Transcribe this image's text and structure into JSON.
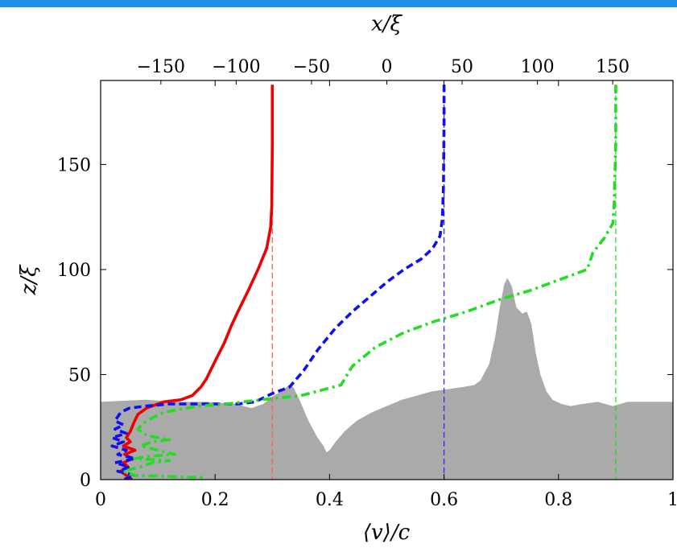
{
  "chart_data": {
    "type": "line",
    "title": "",
    "xlabel": "⟨v⟩/c",
    "ylabel": "z/ξ",
    "top_xlabel": "x/ξ",
    "xlim": [
      0,
      1
    ],
    "ylim": [
      0,
      190
    ],
    "top_xlim": [
      -190,
      190
    ],
    "x_ticks": [
      {
        "value": 0,
        "label": "0"
      },
      {
        "value": 0.2,
        "label": "0.2"
      },
      {
        "value": 0.4,
        "label": "0.4"
      },
      {
        "value": 0.6,
        "label": "0.6"
      },
      {
        "value": 0.8,
        "label": "0.8"
      },
      {
        "value": 1,
        "label": "1"
      }
    ],
    "y_ticks": [
      {
        "value": 0,
        "label": "0"
      },
      {
        "value": 50,
        "label": "50"
      },
      {
        "value": 100,
        "label": "100"
      },
      {
        "value": 150,
        "label": "150"
      }
    ],
    "top_x_ticks": [
      {
        "value": -150,
        "label": "−150"
      },
      {
        "value": -100,
        "label": "−100"
      },
      {
        "value": -50,
        "label": "−50"
      },
      {
        "value": 0,
        "label": "0"
      },
      {
        "value": 50,
        "label": "50"
      },
      {
        "value": 100,
        "label": "100"
      },
      {
        "value": 150,
        "label": "150"
      }
    ],
    "grid": false,
    "legend": "none",
    "reference_lines": [
      {
        "x": 0.3,
        "color": "#ff5a5a"
      },
      {
        "x": 0.6,
        "color": "#2a2aff"
      },
      {
        "x": 0.9,
        "color": "#22dd22"
      }
    ],
    "series": [
      {
        "color": "#ee0000",
        "style": "solid",
        "points": [
          [
            0.3,
            188
          ],
          [
            0.3,
            160
          ],
          [
            0.299,
            130
          ],
          [
            0.297,
            120
          ],
          [
            0.29,
            110
          ],
          [
            0.275,
            100
          ],
          [
            0.258,
            90
          ],
          [
            0.24,
            80
          ],
          [
            0.228,
            73
          ],
          [
            0.216,
            65
          ],
          [
            0.203,
            58
          ],
          [
            0.192,
            52
          ],
          [
            0.185,
            48
          ],
          [
            0.175,
            44
          ],
          [
            0.16,
            40
          ],
          [
            0.14,
            38
          ],
          [
            0.11,
            37
          ],
          [
            0.08,
            34
          ],
          [
            0.065,
            31
          ],
          [
            0.058,
            27
          ],
          [
            0.052,
            23
          ],
          [
            0.045,
            20
          ],
          [
            0.052,
            18
          ],
          [
            0.04,
            16
          ],
          [
            0.06,
            14
          ],
          [
            0.042,
            12
          ],
          [
            0.055,
            10
          ],
          [
            0.04,
            8
          ],
          [
            0.048,
            6
          ],
          [
            0.035,
            4
          ],
          [
            0.045,
            2
          ],
          [
            0.055,
            0
          ]
        ]
      },
      {
        "color": "#1010ee",
        "style": "dashed",
        "points": [
          [
            0.6,
            188
          ],
          [
            0.6,
            170
          ],
          [
            0.599,
            140
          ],
          [
            0.597,
            124
          ],
          [
            0.593,
            116
          ],
          [
            0.58,
            110
          ],
          [
            0.56,
            105
          ],
          [
            0.53,
            100
          ],
          [
            0.5,
            94
          ],
          [
            0.47,
            87
          ],
          [
            0.44,
            80
          ],
          [
            0.41,
            72
          ],
          [
            0.38,
            62
          ],
          [
            0.355,
            52
          ],
          [
            0.33,
            44
          ],
          [
            0.3,
            41
          ],
          [
            0.27,
            37
          ],
          [
            0.24,
            36
          ],
          [
            0.18,
            36
          ],
          [
            0.12,
            36
          ],
          [
            0.08,
            35
          ],
          [
            0.05,
            34
          ],
          [
            0.035,
            32
          ],
          [
            0.025,
            28
          ],
          [
            0.04,
            26
          ],
          [
            0.025,
            24
          ],
          [
            0.045,
            22
          ],
          [
            0.02,
            20
          ],
          [
            0.04,
            18
          ],
          [
            0.02,
            16
          ],
          [
            0.045,
            14
          ],
          [
            0.03,
            12
          ],
          [
            0.06,
            10
          ],
          [
            0.025,
            8
          ],
          [
            0.05,
            6
          ],
          [
            0.03,
            4
          ],
          [
            0.06,
            2
          ],
          [
            0.04,
            0
          ]
        ]
      },
      {
        "color": "#22dd22",
        "style": "dashdot",
        "points": [
          [
            0.9,
            188
          ],
          [
            0.9,
            160
          ],
          [
            0.897,
            130
          ],
          [
            0.895,
            122
          ],
          [
            0.88,
            115
          ],
          [
            0.86,
            108
          ],
          [
            0.85,
            100
          ],
          [
            0.8,
            95
          ],
          [
            0.75,
            90
          ],
          [
            0.7,
            86
          ],
          [
            0.64,
            80
          ],
          [
            0.58,
            75
          ],
          [
            0.53,
            70
          ],
          [
            0.48,
            63
          ],
          [
            0.44,
            54
          ],
          [
            0.42,
            45
          ],
          [
            0.35,
            40
          ],
          [
            0.28,
            38
          ],
          [
            0.22,
            36
          ],
          [
            0.17,
            35
          ],
          [
            0.11,
            32
          ],
          [
            0.08,
            28
          ],
          [
            0.065,
            24
          ],
          [
            0.08,
            21
          ],
          [
            0.12,
            19
          ],
          [
            0.09,
            18
          ],
          [
            0.07,
            16
          ],
          [
            0.1,
            14
          ],
          [
            0.13,
            12
          ],
          [
            0.08,
            11
          ],
          [
            0.06,
            10
          ],
          [
            0.12,
            9
          ],
          [
            0.09,
            8
          ],
          [
            0.07,
            6
          ],
          [
            0.04,
            4
          ],
          [
            0.06,
            2
          ],
          [
            0.18,
            1
          ],
          [
            0.18,
            0
          ]
        ]
      }
    ],
    "background_profile": {
      "color": "#aaaaaa",
      "description_axis": "top_x",
      "points": [
        [
          -190,
          37
        ],
        [
          -160,
          38
        ],
        [
          -140,
          37
        ],
        [
          -120,
          37
        ],
        [
          -100,
          36
        ],
        [
          -90,
          34
        ],
        [
          -82,
          36
        ],
        [
          -75,
          40
        ],
        [
          -70,
          42
        ],
        [
          -65,
          45
        ],
        [
          -62,
          44
        ],
        [
          -58,
          38
        ],
        [
          -52,
          28
        ],
        [
          -46,
          20
        ],
        [
          -42,
          16
        ],
        [
          -40,
          13
        ],
        [
          -38,
          14
        ],
        [
          -34,
          18
        ],
        [
          -28,
          23
        ],
        [
          -20,
          28
        ],
        [
          -10,
          32
        ],
        [
          0,
          35
        ],
        [
          10,
          38
        ],
        [
          20,
          40
        ],
        [
          30,
          42
        ],
        [
          40,
          43
        ],
        [
          50,
          44
        ],
        [
          58,
          45
        ],
        [
          62,
          47
        ],
        [
          68,
          55
        ],
        [
          72,
          68
        ],
        [
          75,
          82
        ],
        [
          78,
          93
        ],
        [
          80,
          96
        ],
        [
          83,
          92
        ],
        [
          86,
          82
        ],
        [
          90,
          79
        ],
        [
          93,
          80
        ],
        [
          96,
          74
        ],
        [
          99,
          60
        ],
        [
          102,
          50
        ],
        [
          106,
          42
        ],
        [
          110,
          38
        ],
        [
          116,
          36
        ],
        [
          122,
          35
        ],
        [
          130,
          36
        ],
        [
          140,
          37
        ],
        [
          150,
          35
        ],
        [
          160,
          37
        ],
        [
          175,
          37
        ],
        [
          190,
          37
        ]
      ]
    }
  }
}
